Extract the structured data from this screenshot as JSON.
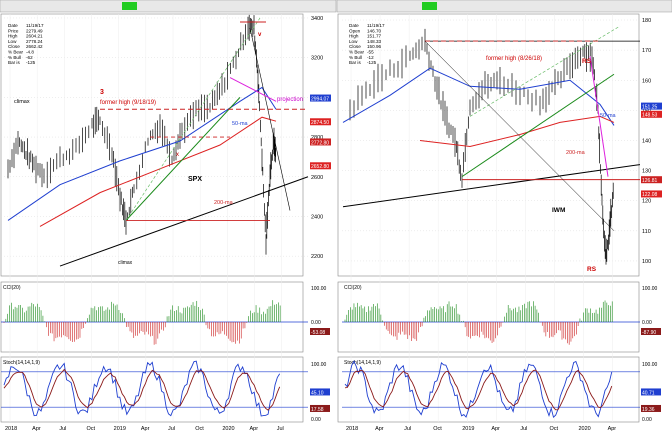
{
  "chart_data": [
    {
      "type": "candlestick",
      "symbol_header": "SPX",
      "info_lines": [
        "Date",
        "11/19/17",
        "Price",
        "2279.49",
        "High",
        "2604.21",
        "Low",
        "2778.24",
        "Close",
        "2662.42",
        "% Bear",
        "-4.8",
        "% Bull",
        "-62",
        "Bar is",
        "-125"
      ],
      "price_labels_box": [
        "2994.07",
        "2874.50",
        "2772.80",
        "2652.80"
      ],
      "y_ticks": [
        2200,
        2400,
        2600,
        2800,
        3000,
        3200,
        3400
      ],
      "ylim": [
        2100,
        3420
      ],
      "x_ticks": [
        "2018",
        "Apr",
        "Jul",
        "Oct",
        "2019",
        "Apr",
        "Jul",
        "Oct",
        "2020",
        "Apr",
        "Jul"
      ],
      "annotations": {
        "climax_top": "climax",
        "climax_bottom": "climax",
        "former_high": "former high (9/18/19)",
        "three": "3",
        "symbol": "SPX",
        "ma50": "50-ma",
        "ma200": "200-ma",
        "projection": "projection",
        "v": "v",
        "x": "x"
      },
      "cci": {
        "title": "CCI(20)",
        "labels": [
          "100.00",
          "0.00",
          "-53.08"
        ]
      },
      "stoch": {
        "title": "Stoch(14,14,1,9)",
        "labels": [
          "100.00",
          "45.10",
          "17.58",
          "0.00"
        ]
      }
    },
    {
      "type": "candlestick",
      "symbol_header": "IWM",
      "info_lines": [
        "Date",
        "11/19/17",
        "Open",
        "146.70",
        "High",
        "151.77",
        "Low",
        "148.33",
        "Close",
        "150.96",
        "% Bear",
        "-55",
        "% Bull",
        "-12",
        "Bar is",
        "-125"
      ],
      "price_labels_box": [
        "151.25",
        "148.53",
        "126.81",
        "122.08"
      ],
      "y_ticks": [
        100,
        110,
        120,
        130,
        140,
        150,
        160,
        170,
        180
      ],
      "ylim": [
        95,
        182
      ],
      "x_ticks": [
        "2018",
        "Apr",
        "Jul",
        "Oct",
        "2019",
        "Apr",
        "Jul",
        "Oct",
        "2020",
        "Apr"
      ],
      "annotations": {
        "former_high": "former high (8/26/18)",
        "rs_top": "RS",
        "rs_bottom": "RS",
        "symbol": "IWM",
        "ma50": "50-ma",
        "ma200": "200-ma"
      },
      "cci": {
        "title": "CCI(20)",
        "labels": [
          "100.00",
          "0.00",
          "-87.90"
        ]
      },
      "stoch": {
        "title": "Stoch(14,14,1,9)",
        "labels": [
          "100.00",
          "40.71",
          "19.36",
          "0.00"
        ]
      }
    }
  ]
}
